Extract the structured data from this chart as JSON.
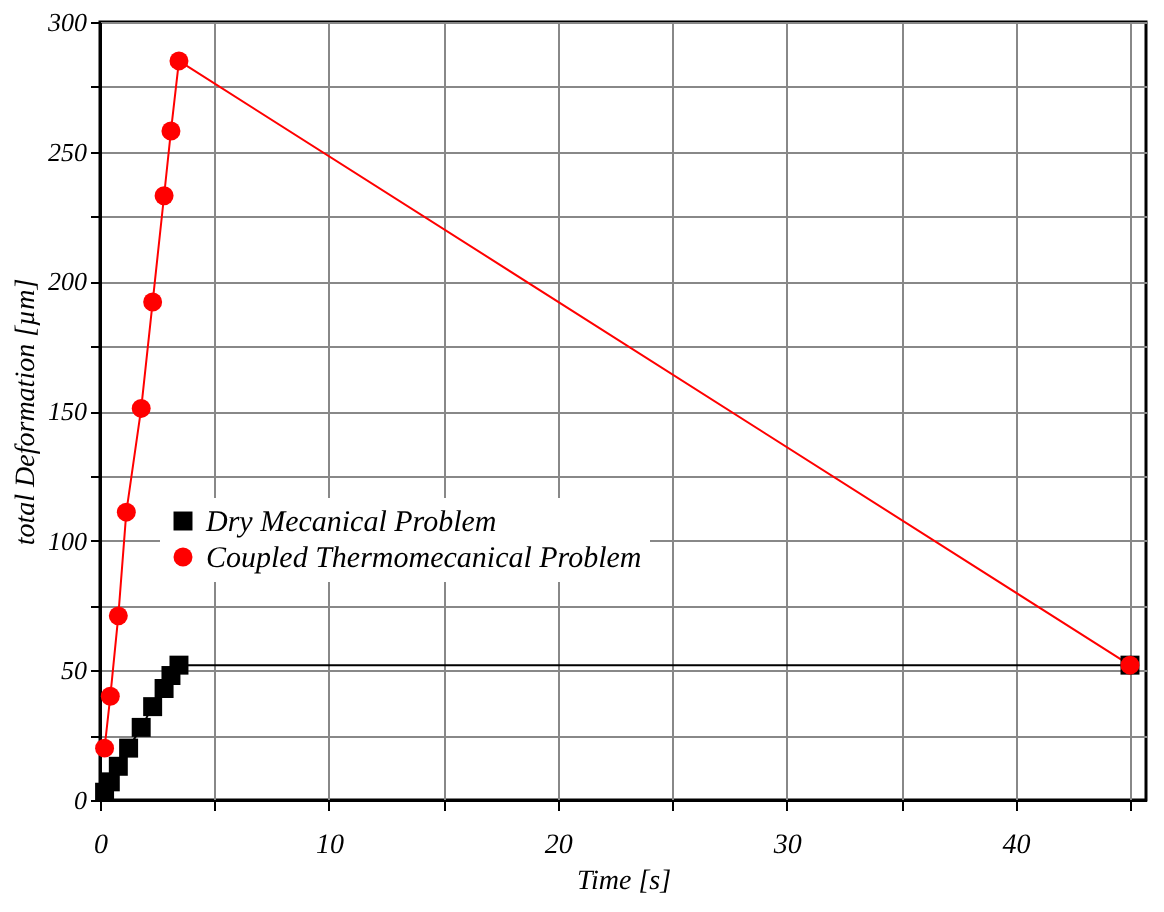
{
  "chart_data": {
    "type": "line",
    "xlabel": "Time [s]",
    "ylabel": "total Deformation [µm]",
    "xlim": [
      0,
      45.7
    ],
    "ylim": [
      0,
      300
    ],
    "xticks": [
      0,
      {
        "value": 5,
        "label": null
      },
      10,
      {
        "value": 15,
        "label": null
      },
      20,
      {
        "value": 25,
        "label": null
      },
      30,
      {
        "value": 35,
        "label": null
      },
      40,
      {
        "value": 45,
        "label": null
      }
    ],
    "yticks": [
      0,
      {
        "value": 25,
        "label": null
      },
      50,
      {
        "value": 75,
        "label": null
      },
      100,
      {
        "value": 125,
        "label": null
      },
      150,
      {
        "value": 175,
        "label": null
      },
      200,
      {
        "value": 225,
        "label": null
      },
      250,
      {
        "value": 275,
        "label": null
      },
      300
    ],
    "grid": true,
    "legend": "left",
    "series": [
      {
        "name": "Dry Mecanical Problem",
        "color": "#000000",
        "marker": "square",
        "x": [
          0.2,
          0.45,
          0.8,
          1.25,
          1.8,
          2.3,
          2.8,
          3.1,
          3.45,
          45
        ],
        "values": [
          3,
          7,
          13,
          20,
          28,
          36,
          43,
          48,
          52,
          52
        ]
      },
      {
        "name": "Coupled Thermomecanical Problem",
        "color": "#ff0000",
        "marker": "circle",
        "x": [
          0.2,
          0.45,
          0.8,
          1.15,
          1.8,
          2.3,
          2.8,
          3.1,
          3.45,
          45
        ],
        "values": [
          20,
          40,
          71,
          111,
          151,
          192,
          233,
          258,
          285,
          52
        ]
      }
    ]
  }
}
